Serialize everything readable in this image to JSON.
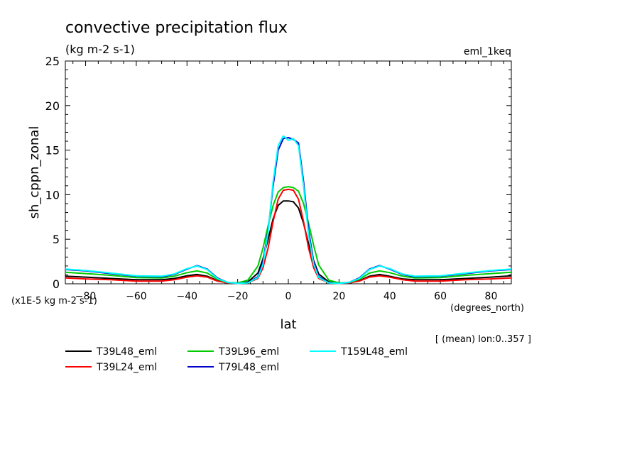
{
  "chart_data": {
    "type": "line",
    "title": "convective precipitation flux",
    "subtitle": "(kg m-2 s-1)",
    "experiment_label": "eml_1keq",
    "ylabel": "sh_cppn_zonal",
    "xlabel": "lat",
    "x_units": "(degrees_north)",
    "y_scale_note": "(x1E-5 kg m-2 s-1)",
    "footnote": "[ (mean) lon:0..357 ]",
    "xlim": [
      -88,
      88
    ],
    "ylim": [
      0,
      25
    ],
    "x_ticks": [
      -80,
      -60,
      -40,
      -20,
      0,
      20,
      40,
      60,
      80
    ],
    "y_ticks": [
      0,
      5,
      10,
      15,
      20,
      25
    ],
    "grid": false,
    "legend_position": "bottom-left",
    "x": [
      -88,
      -80,
      -70,
      -60,
      -50,
      -45,
      -40,
      -36,
      -32,
      -28,
      -24,
      -20,
      -16,
      -12,
      -10,
      -8,
      -6,
      -4,
      -2,
      0,
      2,
      4,
      6,
      8,
      10,
      12,
      16,
      20,
      24,
      28,
      32,
      36,
      40,
      45,
      50,
      60,
      70,
      80,
      88
    ],
    "series": [
      {
        "name": "T39L48_eml",
        "color": "#000000",
        "values": [
          0.85,
          0.75,
          0.6,
          0.45,
          0.45,
          0.6,
          0.9,
          1.05,
          0.85,
          0.35,
          0.12,
          0.08,
          0.2,
          1.2,
          2.8,
          5.0,
          7.3,
          8.8,
          9.3,
          9.3,
          9.2,
          8.5,
          6.8,
          4.5,
          2.6,
          1.1,
          0.2,
          0.08,
          0.1,
          0.35,
          0.85,
          1.05,
          0.85,
          0.55,
          0.45,
          0.45,
          0.6,
          0.75,
          0.9
        ]
      },
      {
        "name": "T39L24_eml",
        "color": "#ff0000",
        "values": [
          0.65,
          0.55,
          0.45,
          0.3,
          0.3,
          0.45,
          0.75,
          0.9,
          0.75,
          0.3,
          0.1,
          0.05,
          0.1,
          0.6,
          1.8,
          4.0,
          7.0,
          9.5,
          10.5,
          10.6,
          10.5,
          9.5,
          7.0,
          4.0,
          1.8,
          0.6,
          0.1,
          0.05,
          0.1,
          0.3,
          0.75,
          0.9,
          0.75,
          0.45,
          0.3,
          0.3,
          0.45,
          0.55,
          0.65
        ]
      },
      {
        "name": "T39L96_eml",
        "color": "#00cc00",
        "values": [
          1.3,
          1.15,
          0.95,
          0.7,
          0.65,
          0.85,
          1.25,
          1.45,
          1.2,
          0.5,
          0.15,
          0.1,
          0.4,
          2.0,
          4.0,
          6.5,
          8.8,
          10.3,
          10.8,
          10.9,
          10.8,
          10.4,
          9.0,
          6.8,
          4.3,
          2.1,
          0.4,
          0.1,
          0.15,
          0.5,
          1.2,
          1.45,
          1.25,
          0.85,
          0.65,
          0.7,
          0.95,
          1.15,
          1.3
        ]
      },
      {
        "name": "T79L48_eml",
        "color": "#0000cc",
        "values": [
          1.6,
          1.45,
          1.15,
          0.85,
          0.8,
          1.05,
          1.65,
          2.05,
          1.65,
          0.65,
          0.15,
          0.05,
          0.1,
          0.8,
          2.5,
          6.0,
          11.0,
          15.0,
          16.3,
          16.4,
          16.2,
          15.8,
          11.5,
          6.0,
          2.5,
          0.8,
          0.1,
          0.05,
          0.15,
          0.65,
          1.65,
          2.05,
          1.65,
          1.05,
          0.8,
          0.85,
          1.15,
          1.45,
          1.6
        ]
      },
      {
        "name": "T159L48_eml",
        "color": "#00ffff",
        "values": [
          1.65,
          1.5,
          1.2,
          0.9,
          0.85,
          1.1,
          1.7,
          2.0,
          1.6,
          0.6,
          0.15,
          0.05,
          0.1,
          0.7,
          2.2,
          5.8,
          11.5,
          15.5,
          16.6,
          16.1,
          16.3,
          15.5,
          11.0,
          5.5,
          2.2,
          0.7,
          0.1,
          0.05,
          0.15,
          0.6,
          1.6,
          2.0,
          1.7,
          1.1,
          0.85,
          0.9,
          1.2,
          1.5,
          1.65
        ]
      }
    ]
  }
}
